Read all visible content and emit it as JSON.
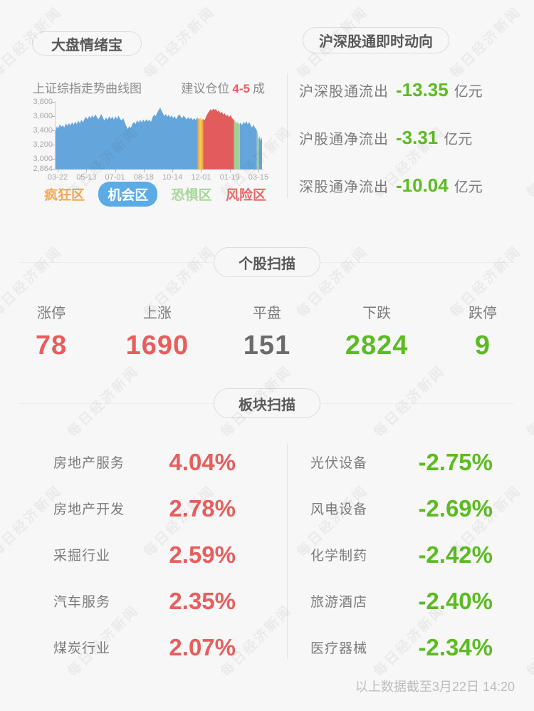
{
  "page": {
    "watermark_text": "每日经济新闻",
    "footer_note": "以上数据截至3月22日 14:20"
  },
  "sentiment_panel": {
    "title": "大盘情绪宝",
    "chart_caption": "上证综指走势曲线图",
    "position_advice": {
      "prefix": "建议仓位",
      "value": "4-5",
      "suffix": "成",
      "value_color": "#E85D5D"
    },
    "legend": [
      {
        "label": "疯狂区",
        "color": "#F4A955",
        "style": "text"
      },
      {
        "label": "机会区",
        "color": "#5BACE6",
        "style": "pill"
      },
      {
        "label": "恐惧区",
        "color": "#A8D79B",
        "style": "text"
      },
      {
        "label": "风险区",
        "color": "#E9696B",
        "style": "text"
      }
    ]
  },
  "chart_data": {
    "type": "area",
    "title": "上证综指走势曲线图",
    "x_ticks": [
      "03-22",
      "05-13",
      "07-01",
      "08-18",
      "10-14",
      "12-01",
      "01-19",
      "03-15"
    ],
    "y_ticks": [
      "3,800",
      "3,600",
      "3,400",
      "3,200",
      "3,000",
      "2,864"
    ],
    "y_tick_values": [
      3800,
      3600,
      3400,
      3200,
      3000,
      2864
    ],
    "ylim": [
      2864,
      3800
    ],
    "grid": false,
    "legend_position": "bottom",
    "points": [
      [
        0,
        3390
      ],
      [
        0.006,
        3460
      ],
      [
        0.013,
        3430
      ],
      [
        0.02,
        3485
      ],
      [
        0.028,
        3450
      ],
      [
        0.035,
        3475
      ],
      [
        0.042,
        3440
      ],
      [
        0.05,
        3500
      ],
      [
        0.058,
        3465
      ],
      [
        0.065,
        3505
      ],
      [
        0.072,
        3470
      ],
      [
        0.08,
        3515
      ],
      [
        0.088,
        3480
      ],
      [
        0.095,
        3525
      ],
      [
        0.103,
        3490
      ],
      [
        0.11,
        3540
      ],
      [
        0.118,
        3500
      ],
      [
        0.125,
        3550
      ],
      [
        0.133,
        3515
      ],
      [
        0.14,
        3560
      ],
      [
        0.148,
        3590
      ],
      [
        0.155,
        3555
      ],
      [
        0.163,
        3605
      ],
      [
        0.17,
        3570
      ],
      [
        0.178,
        3615
      ],
      [
        0.185,
        3580
      ],
      [
        0.193,
        3625
      ],
      [
        0.2,
        3590
      ],
      [
        0.207,
        3555
      ],
      [
        0.215,
        3595
      ],
      [
        0.222,
        3630
      ],
      [
        0.23,
        3575
      ],
      [
        0.237,
        3540
      ],
      [
        0.245,
        3585
      ],
      [
        0.252,
        3550
      ],
      [
        0.26,
        3600
      ],
      [
        0.268,
        3560
      ],
      [
        0.275,
        3595
      ],
      [
        0.283,
        3550
      ],
      [
        0.29,
        3600
      ],
      [
        0.298,
        3558
      ],
      [
        0.305,
        3608
      ],
      [
        0.312,
        3565
      ],
      [
        0.32,
        3540
      ],
      [
        0.328,
        3575
      ],
      [
        0.335,
        3515
      ],
      [
        0.342,
        3465
      ],
      [
        0.35,
        3420
      ],
      [
        0.357,
        3460
      ],
      [
        0.364,
        3435
      ],
      [
        0.372,
        3490
      ],
      [
        0.38,
        3520
      ],
      [
        0.388,
        3488
      ],
      [
        0.395,
        3545
      ],
      [
        0.403,
        3508
      ],
      [
        0.41,
        3550
      ],
      [
        0.418,
        3512
      ],
      [
        0.425,
        3555
      ],
      [
        0.432,
        3518
      ],
      [
        0.44,
        3558
      ],
      [
        0.448,
        3528
      ],
      [
        0.455,
        3552
      ],
      [
        0.462,
        3518
      ],
      [
        0.47,
        3585
      ],
      [
        0.478,
        3625
      ],
      [
        0.485,
        3598
      ],
      [
        0.493,
        3655
      ],
      [
        0.5,
        3688
      ],
      [
        0.507,
        3720
      ],
      [
        0.513,
        3678
      ],
      [
        0.52,
        3640
      ],
      [
        0.527,
        3600
      ],
      [
        0.534,
        3632
      ],
      [
        0.541,
        3592
      ],
      [
        0.548,
        3622
      ],
      [
        0.555,
        3582
      ],
      [
        0.562,
        3612
      ],
      [
        0.57,
        3572
      ],
      [
        0.577,
        3602
      ],
      [
        0.584,
        3558
      ],
      [
        0.591,
        3592
      ],
      [
        0.598,
        3628
      ],
      [
        0.606,
        3598
      ],
      [
        0.613,
        3568
      ],
      [
        0.62,
        3608
      ],
      [
        0.628,
        3582
      ],
      [
        0.635,
        3552
      ],
      [
        0.642,
        3588
      ],
      [
        0.65,
        3558
      ],
      [
        0.657,
        3582
      ],
      [
        0.664,
        3548
      ],
      [
        0.672,
        3572
      ],
      [
        0.679,
        3545
      ],
      [
        0.686,
        3585
      ],
      [
        0.694,
        3558
      ],
      [
        0.701,
        3582
      ],
      [
        0.708,
        3550
      ],
      [
        0.715,
        3562
      ],
      [
        0.722,
        3542
      ],
      [
        0.73,
        3598
      ],
      [
        0.737,
        3638
      ],
      [
        0.744,
        3668
      ],
      [
        0.751,
        3698
      ],
      [
        0.758,
        3678
      ],
      [
        0.764,
        3708
      ],
      [
        0.77,
        3688
      ],
      [
        0.777,
        3700
      ],
      [
        0.784,
        3662
      ],
      [
        0.791,
        3680
      ],
      [
        0.798,
        3642
      ],
      [
        0.805,
        3662
      ],
      [
        0.812,
        3622
      ],
      [
        0.819,
        3642
      ],
      [
        0.826,
        3602
      ],
      [
        0.833,
        3622
      ],
      [
        0.84,
        3585
      ],
      [
        0.847,
        3615
      ],
      [
        0.854,
        3578
      ],
      [
        0.861,
        3555
      ],
      [
        0.868,
        3538
      ],
      [
        0.875,
        3500
      ],
      [
        0.882,
        3522
      ],
      [
        0.889,
        3482
      ],
      [
        0.896,
        3512
      ],
      [
        0.903,
        3472
      ],
      [
        0.91,
        3522
      ],
      [
        0.917,
        3492
      ],
      [
        0.924,
        3532
      ],
      [
        0.931,
        3482
      ],
      [
        0.938,
        3522
      ],
      [
        0.945,
        3472
      ],
      [
        0.952,
        3442
      ],
      [
        0.959,
        3482
      ],
      [
        0.966,
        3440
      ],
      [
        0.972,
        3418
      ],
      [
        0.978,
        3380
      ],
      [
        0.983,
        3272
      ],
      [
        0.987,
        3325
      ],
      [
        0.991,
        3252
      ],
      [
        0.995,
        3310
      ],
      [
        1,
        3272
      ]
    ],
    "zone_segments": [
      {
        "from": 0,
        "to": 0.688,
        "zone": "机会区",
        "color": "#64A5DB"
      },
      {
        "from": 0.688,
        "to": 0.698,
        "zone": "疯狂区",
        "color": "#F2A950"
      },
      {
        "from": 0.698,
        "to": 0.706,
        "zone": "疯狂区",
        "color": "#EFD24E"
      },
      {
        "from": 0.706,
        "to": 0.715,
        "zone": "疯狂区",
        "color": "#F2A950"
      },
      {
        "from": 0.715,
        "to": 0.865,
        "zone": "风险区",
        "color": "#E25C5C"
      },
      {
        "from": 0.865,
        "to": 0.893,
        "zone": "恐惧区",
        "color": "#A3CF92"
      },
      {
        "from": 0.893,
        "to": 0.975,
        "zone": "机会区",
        "color": "#64A5DB"
      },
      {
        "from": 0.975,
        "to": 0.985,
        "zone": "恐惧区",
        "color": "#A3CF92"
      },
      {
        "from": 0.985,
        "to": 1,
        "zone": "机会区",
        "color": "#64A5DB"
      }
    ]
  },
  "northbound_panel": {
    "title": "沪深股通即时动向",
    "value_color": "#5CBB22",
    "rows": [
      {
        "label": "沪深股通流出",
        "value": "-13.35",
        "unit": "亿元"
      },
      {
        "label": "沪股通净流出",
        "value": "-3.31",
        "unit": "亿元"
      },
      {
        "label": "深股通净流出",
        "value": "-10.04",
        "unit": "亿元"
      }
    ]
  },
  "stock_scan": {
    "title": "个股扫描",
    "stats": [
      {
        "label": "涨停",
        "value": "78",
        "color": "#E85D5D"
      },
      {
        "label": "上涨",
        "value": "1690",
        "color": "#E85D5D"
      },
      {
        "label": "平盘",
        "value": "151",
        "color": "#6b6b6b"
      },
      {
        "label": "下跌",
        "value": "2824",
        "color": "#5CBB22"
      },
      {
        "label": "跌停",
        "value": "9",
        "color": "#5CBB22"
      }
    ]
  },
  "sector_scan": {
    "title": "板块扫描",
    "gainer_color": "#E85D5D",
    "loser_color": "#5CBB22",
    "gainers": [
      {
        "name": "房地产服务",
        "change": "4.04%"
      },
      {
        "name": "房地产开发",
        "change": "2.78%"
      },
      {
        "name": "采掘行业",
        "change": "2.59%"
      },
      {
        "name": "汽车服务",
        "change": "2.35%"
      },
      {
        "name": "煤炭行业",
        "change": "2.07%"
      }
    ],
    "losers": [
      {
        "name": "光伏设备",
        "change": "-2.75%"
      },
      {
        "name": "风电设备",
        "change": "-2.69%"
      },
      {
        "name": "化学制药",
        "change": "-2.42%"
      },
      {
        "name": "旅游酒店",
        "change": "-2.40%"
      },
      {
        "name": "医疗器械",
        "change": "-2.34%"
      }
    ]
  }
}
